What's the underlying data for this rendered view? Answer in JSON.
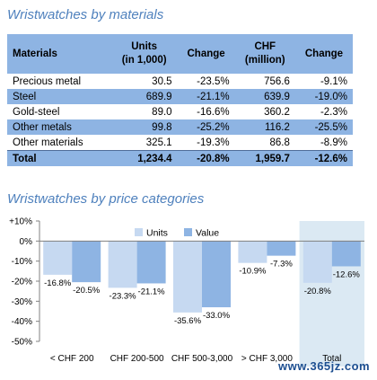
{
  "section1": {
    "title": "Wristwatches by materials",
    "table": {
      "headers": {
        "materials": "Materials",
        "units_line1": "Units",
        "units_line2": "(in 1,000)",
        "change1": "Change",
        "chf_line1": "CHF",
        "chf_line2": "(million)",
        "change2": "Change"
      },
      "rows": [
        {
          "material": "Precious metal",
          "units": "30.5",
          "units_change": "-23.5%",
          "chf": "756.6",
          "chf_change": "-9.1%"
        },
        {
          "material": "Steel",
          "units": "689.9",
          "units_change": "-21.1%",
          "chf": "639.9",
          "chf_change": "-19.0%"
        },
        {
          "material": "Gold-steel",
          "units": "89.0",
          "units_change": "-16.6%",
          "chf": "360.2",
          "chf_change": "-2.3%"
        },
        {
          "material": "Other metals",
          "units": "99.8",
          "units_change": "-25.2%",
          "chf": "116.2",
          "chf_change": "-25.5%"
        },
        {
          "material": "Other materials",
          "units": "325.1",
          "units_change": "-19.3%",
          "chf": "86.8",
          "chf_change": "-8.9%"
        }
      ],
      "total": {
        "material": "Total",
        "units": "1,234.4",
        "units_change": "-20.8%",
        "chf": "1,959.7",
        "chf_change": "-12.6%"
      }
    }
  },
  "section2": {
    "title": "Wristwatches by price categories"
  },
  "chart_data": {
    "type": "bar",
    "categories": [
      "< CHF 200",
      "CHF 200-500",
      "CHF 500-3,000",
      "> CHF 3,000",
      "Total"
    ],
    "series": [
      {
        "name": "Units",
        "values": [
          -16.8,
          -23.3,
          -35.6,
          -10.9,
          -20.8
        ],
        "labels": [
          "-16.8%",
          "-23.3%",
          "-35.6%",
          "-10.9%",
          "-20.8%"
        ],
        "color": "#c6d9f1"
      },
      {
        "name": "Value",
        "values": [
          -20.5,
          -21.1,
          -33.0,
          -7.3,
          -12.6
        ],
        "labels": [
          "-20.5%",
          "-21.1%",
          "-33.0%",
          "-7.3%",
          "-12.6%"
        ],
        "color": "#8eb4e3"
      }
    ],
    "ylim": [
      -50,
      10
    ],
    "yticks": [
      10,
      0,
      -10,
      -20,
      -30,
      -40,
      -50
    ],
    "ytick_labels": [
      "+10%",
      "0%",
      "-10%",
      "-20%",
      "-30%",
      "-40%",
      "-50%"
    ],
    "highlight_category": "Total",
    "highlight_color": "#dbe9f3",
    "legend_position": "top-center",
    "grid": false
  },
  "watermark": "www.365jz.com"
}
